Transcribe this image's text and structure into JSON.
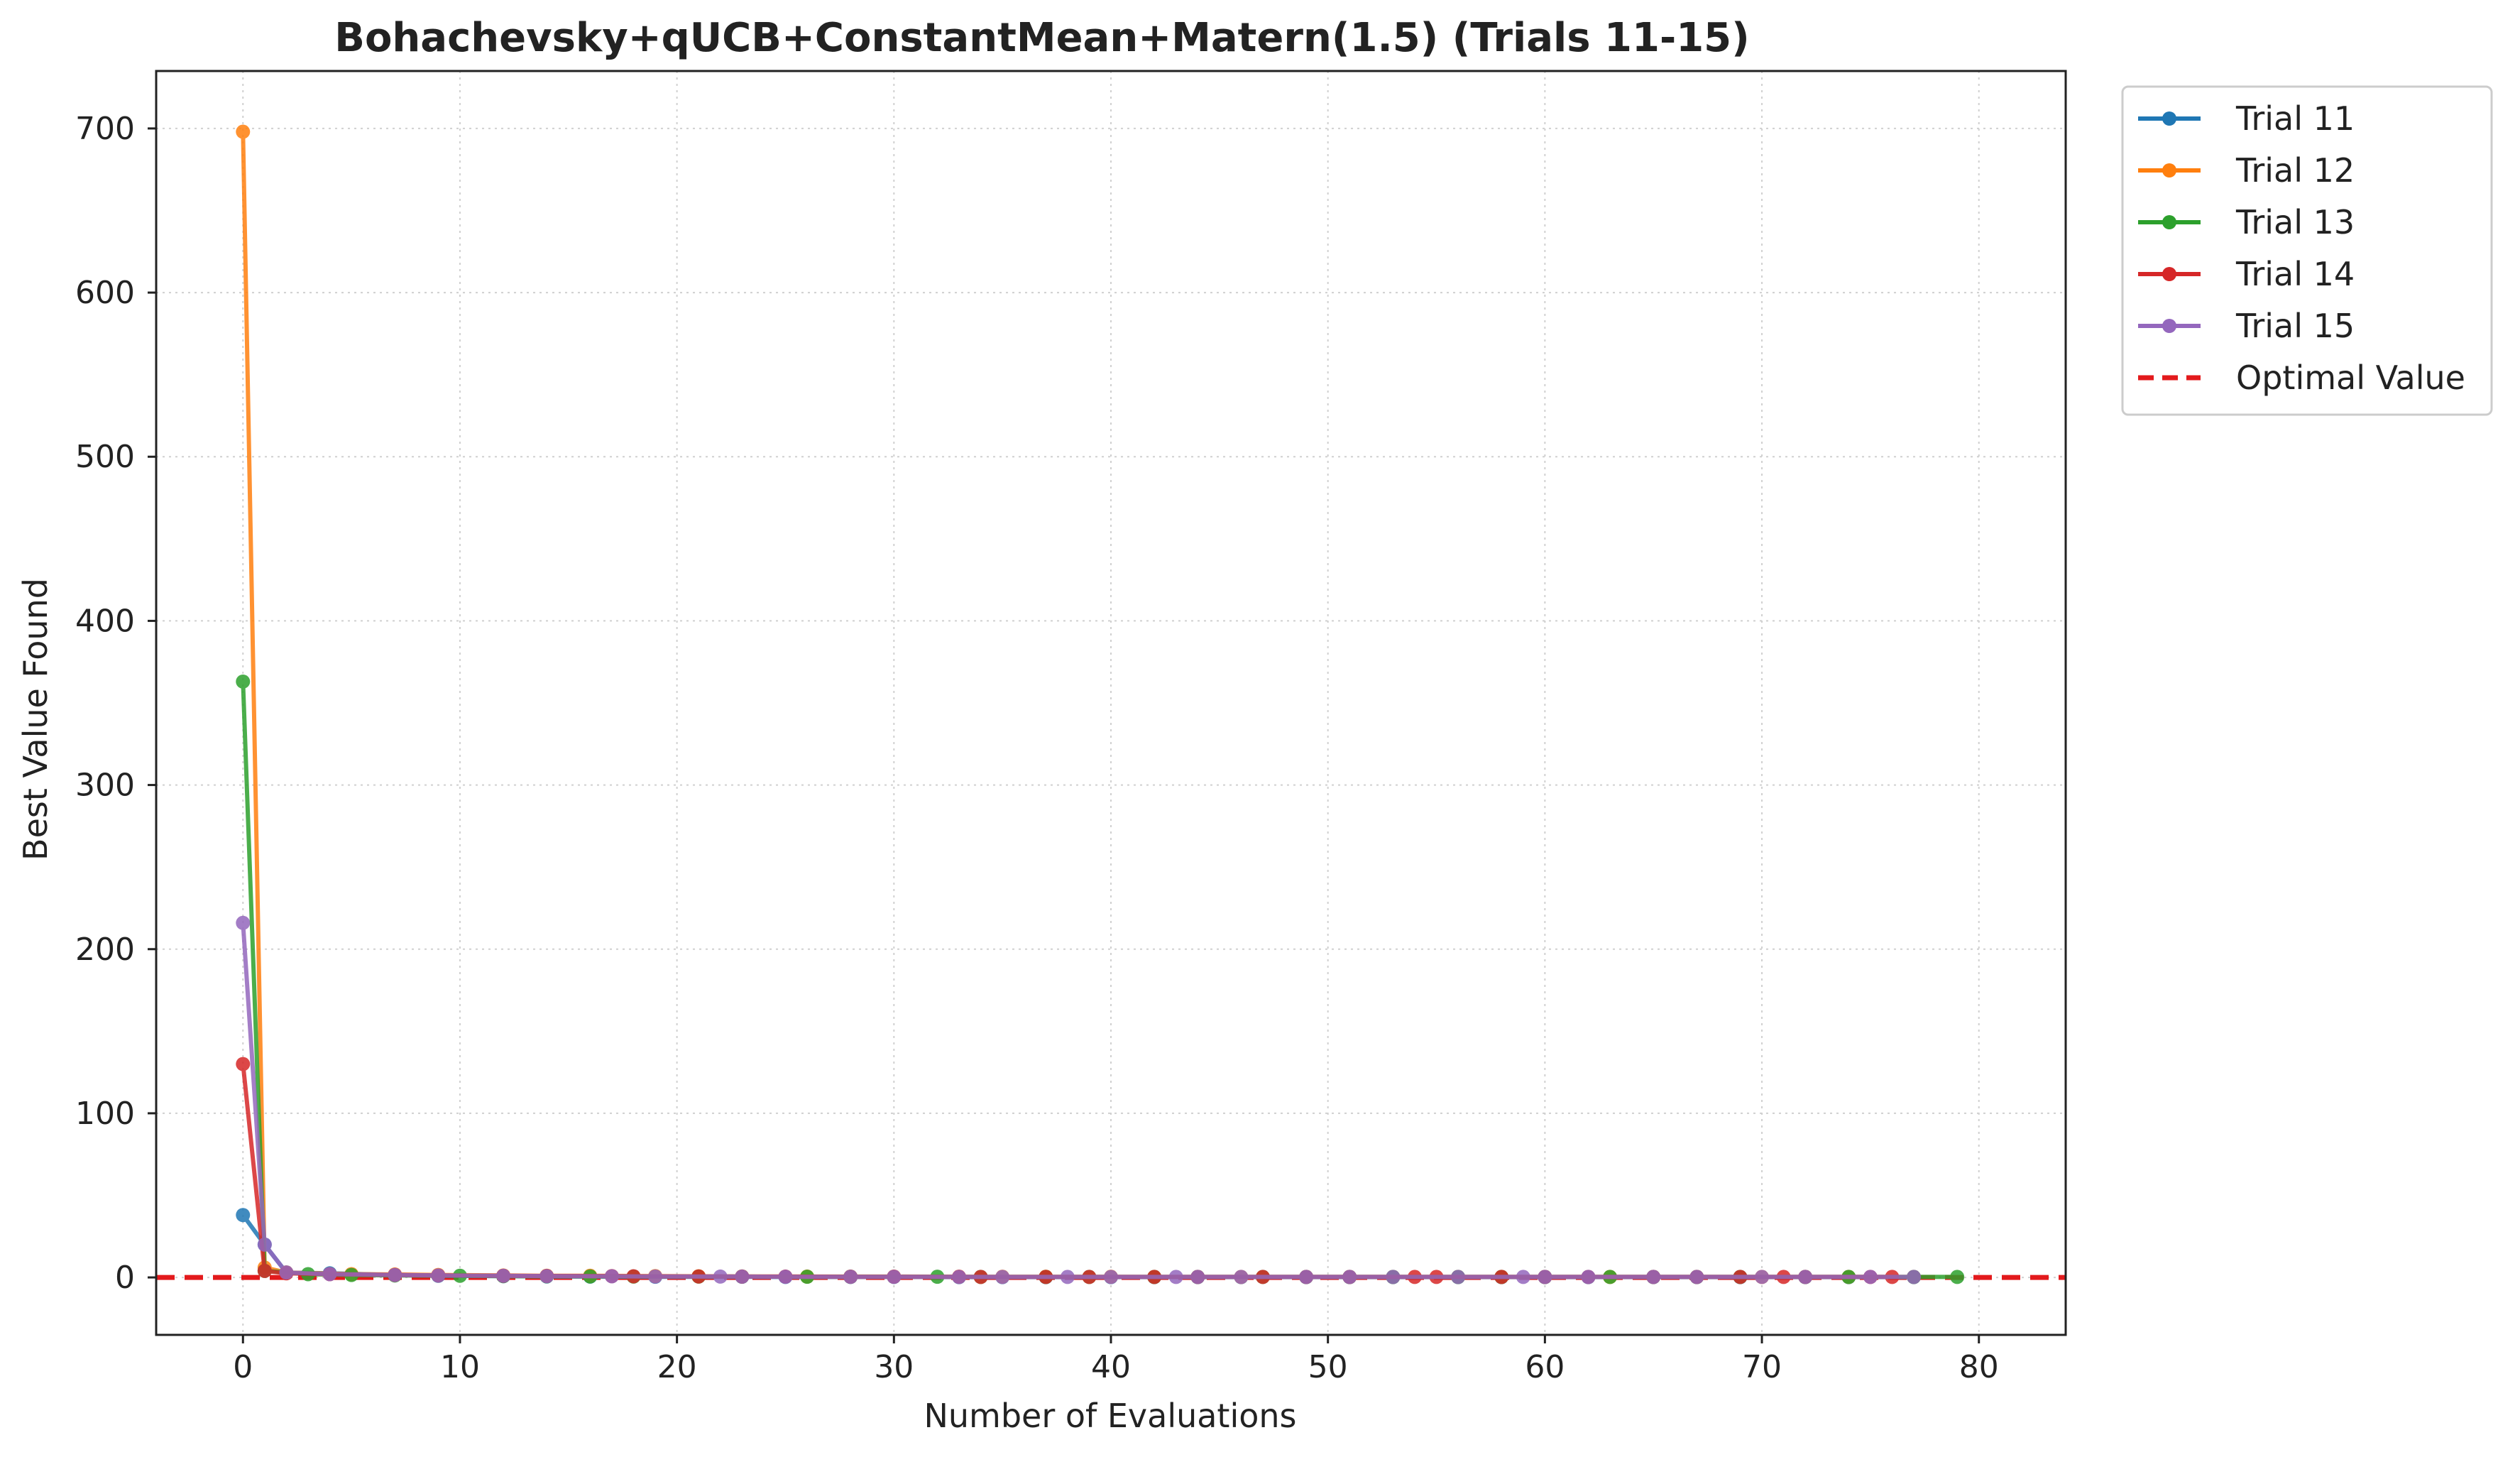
{
  "chart_data": {
    "type": "line",
    "title": "Bohachevsky+qUCB+ConstantMean+Matern(1.5) (Trials 11-15)",
    "xlabel": "Number of Evaluations",
    "ylabel": "Best Value Found",
    "xlim": [
      -4,
      84
    ],
    "ylim": [
      -35,
      735
    ],
    "xticks": [
      0,
      10,
      20,
      30,
      40,
      50,
      60,
      70,
      80
    ],
    "yticks": [
      0,
      100,
      200,
      300,
      400,
      500,
      600,
      700
    ],
    "grid": true,
    "legend_position": "outside-top-right",
    "series": [
      {
        "name": "Trial 11",
        "color": "#1f77b4",
        "points": [
          [
            0,
            38
          ],
          [
            1,
            20
          ],
          [
            2,
            3
          ],
          [
            4,
            2.5
          ],
          [
            7,
            1.5
          ],
          [
            9,
            1
          ],
          [
            12,
            0.8
          ],
          [
            14,
            0.6
          ],
          [
            16,
            0.5
          ],
          [
            19,
            0.4
          ],
          [
            23,
            0.4
          ],
          [
            25,
            0.3
          ],
          [
            28,
            0.3
          ],
          [
            30,
            0.3
          ],
          [
            33,
            0.2
          ],
          [
            35,
            0.2
          ],
          [
            37,
            0.2
          ],
          [
            40,
            0.2
          ],
          [
            42,
            0.2
          ],
          [
            44,
            0.2
          ],
          [
            46,
            0.2
          ],
          [
            49,
            0.2
          ],
          [
            51,
            0.2
          ],
          [
            53,
            0.2
          ],
          [
            56,
            0.2
          ],
          [
            58,
            0.2
          ],
          [
            60,
            0.2
          ],
          [
            62,
            0.2
          ],
          [
            65,
            0.2
          ],
          [
            67,
            0.2
          ],
          [
            69,
            0.2
          ],
          [
            72,
            0.2
          ],
          [
            74,
            0.2
          ],
          [
            77,
            0.2
          ]
        ]
      },
      {
        "name": "Trial 12",
        "color": "#ff7f0e",
        "points": [
          [
            0,
            698
          ],
          [
            1,
            6
          ],
          [
            2,
            3
          ],
          [
            5,
            2
          ],
          [
            7,
            1.8
          ],
          [
            9,
            1.5
          ],
          [
            12,
            1.2
          ],
          [
            14,
            1
          ],
          [
            16,
            1
          ],
          [
            19,
            0.8
          ],
          [
            21,
            0.7
          ],
          [
            23,
            0.6
          ],
          [
            26,
            0.5
          ],
          [
            28,
            0.5
          ],
          [
            30,
            0.5
          ],
          [
            33,
            0.4
          ],
          [
            35,
            0.4
          ],
          [
            37,
            0.4
          ],
          [
            40,
            0.4
          ],
          [
            42,
            0.3
          ],
          [
            44,
            0.3
          ],
          [
            46,
            0.3
          ],
          [
            49,
            0.3
          ],
          [
            51,
            0.3
          ],
          [
            53,
            0.3
          ],
          [
            56,
            0.3
          ],
          [
            58,
            0.3
          ],
          [
            60,
            0.3
          ],
          [
            63,
            0.3
          ],
          [
            65,
            0.3
          ],
          [
            67,
            0.3
          ],
          [
            70,
            0.3
          ],
          [
            72,
            0.3
          ],
          [
            74,
            0.3
          ],
          [
            77,
            0.3
          ]
        ]
      },
      {
        "name": "Trial 13",
        "color": "#2ca02c",
        "points": [
          [
            0,
            363
          ],
          [
            1,
            4
          ],
          [
            3,
            2
          ],
          [
            5,
            1.5
          ],
          [
            7,
            1.2
          ],
          [
            10,
            1
          ],
          [
            12,
            0.8
          ],
          [
            14,
            0.7
          ],
          [
            16,
            0.6
          ],
          [
            18,
            0.5
          ],
          [
            21,
            0.5
          ],
          [
            23,
            0.5
          ],
          [
            26,
            0.4
          ],
          [
            28,
            0.4
          ],
          [
            32,
            0.4
          ],
          [
            34,
            0.3
          ],
          [
            37,
            0.3
          ],
          [
            39,
            0.3
          ],
          [
            42,
            0.3
          ],
          [
            44,
            0.3
          ],
          [
            47,
            0.3
          ],
          [
            49,
            0.3
          ],
          [
            51,
            0.3
          ],
          [
            53,
            0.3
          ],
          [
            56,
            0.3
          ],
          [
            58,
            0.3
          ],
          [
            60,
            0.3
          ],
          [
            63,
            0.3
          ],
          [
            65,
            0.3
          ],
          [
            67,
            0.3
          ],
          [
            69,
            0.3
          ],
          [
            72,
            0.3
          ],
          [
            74,
            0.3
          ],
          [
            77,
            0.3
          ],
          [
            79,
            0.3
          ]
        ]
      },
      {
        "name": "Trial 14",
        "color": "#d62728",
        "points": [
          [
            0,
            130
          ],
          [
            1,
            4
          ],
          [
            2,
            2.5
          ],
          [
            4,
            2
          ],
          [
            7,
            1.5
          ],
          [
            9,
            1.2
          ],
          [
            12,
            1
          ],
          [
            14,
            0.9
          ],
          [
            17,
            0.8
          ],
          [
            18,
            0.7
          ],
          [
            21,
            0.6
          ],
          [
            23,
            0.5
          ],
          [
            25,
            0.5
          ],
          [
            28,
            0.4
          ],
          [
            30,
            0.4
          ],
          [
            33,
            0.4
          ],
          [
            34,
            0.3
          ],
          [
            37,
            0.3
          ],
          [
            39,
            0.3
          ],
          [
            42,
            0.3
          ],
          [
            44,
            0.3
          ],
          [
            47,
            0.3
          ],
          [
            49,
            0.3
          ],
          [
            51,
            0.3
          ],
          [
            54,
            0.3
          ],
          [
            55,
            0.3
          ],
          [
            58,
            0.3
          ],
          [
            60,
            0.3
          ],
          [
            62,
            0.3
          ],
          [
            65,
            0.3
          ],
          [
            67,
            0.3
          ],
          [
            69,
            0.3
          ],
          [
            71,
            0.3
          ],
          [
            72,
            0.3
          ],
          [
            75,
            0.3
          ],
          [
            76,
            0.3
          ]
        ]
      },
      {
        "name": "Trial 15",
        "color": "#9467bd",
        "points": [
          [
            0,
            216
          ],
          [
            1,
            20
          ],
          [
            2,
            3
          ],
          [
            4,
            2
          ],
          [
            7,
            1.5
          ],
          [
            9,
            1.2
          ],
          [
            12,
            1
          ],
          [
            14,
            0.8
          ],
          [
            17,
            0.7
          ],
          [
            19,
            0.6
          ],
          [
            22,
            0.5
          ],
          [
            23,
            0.5
          ],
          [
            25,
            0.4
          ],
          [
            28,
            0.4
          ],
          [
            30,
            0.4
          ],
          [
            33,
            0.3
          ],
          [
            35,
            0.3
          ],
          [
            38,
            0.3
          ],
          [
            40,
            0.3
          ],
          [
            43,
            0.3
          ],
          [
            44,
            0.3
          ],
          [
            46,
            0.3
          ],
          [
            49,
            0.3
          ],
          [
            51,
            0.3
          ],
          [
            53,
            0.3
          ],
          [
            56,
            0.3
          ],
          [
            59,
            0.3
          ],
          [
            60,
            0.3
          ],
          [
            62,
            0.3
          ],
          [
            65,
            0.3
          ],
          [
            67,
            0.3
          ],
          [
            70,
            0.3
          ],
          [
            72,
            0.3
          ],
          [
            75,
            0.3
          ],
          [
            77,
            0.3
          ]
        ]
      }
    ],
    "reference_line": {
      "name": "Optimal Value",
      "y": 0,
      "color": "#e31a1c",
      "style": "dashed"
    }
  }
}
